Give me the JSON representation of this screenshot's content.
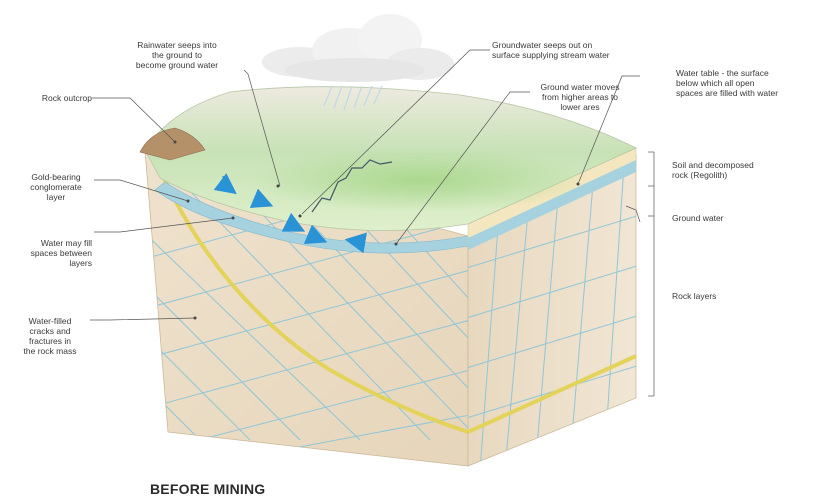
{
  "title": "BEFORE MINING",
  "labels": {
    "rainwater": "Rainwater seeps into\nthe ground to\nbecome ground water",
    "groundwater_out": "Groundwater seeps out on\nsurface supplying stream water",
    "moves": "Ground water moves\nfrom higher areas to\nlower ares",
    "water_table": "Water table - the surface\nbelow which all open\nspaces are filled with water",
    "rock_outcrop": "Rock outcrop",
    "gold": "Gold-bearing\nconglomerate\nlayer",
    "water_fill": "Water may fill\nspaces between\nlayers",
    "fractures": "Water-filled\ncracks and\nfractures in\nthe rock mass",
    "soil": "Soil and decomposed\nrock (Regolith)",
    "ground_water": "Ground water",
    "rock_layers": "Rock layers"
  },
  "colors": {
    "rock": "#ebdcc6",
    "rock_side": "#dfcdb0",
    "grid": "#8fc6d8",
    "gold_seam": "#e3d35a",
    "groundwater": "#a6d2df",
    "soil": "#f4e7bf",
    "surface_green": "#bfdfa8",
    "arrow": "#2a93d5"
  }
}
